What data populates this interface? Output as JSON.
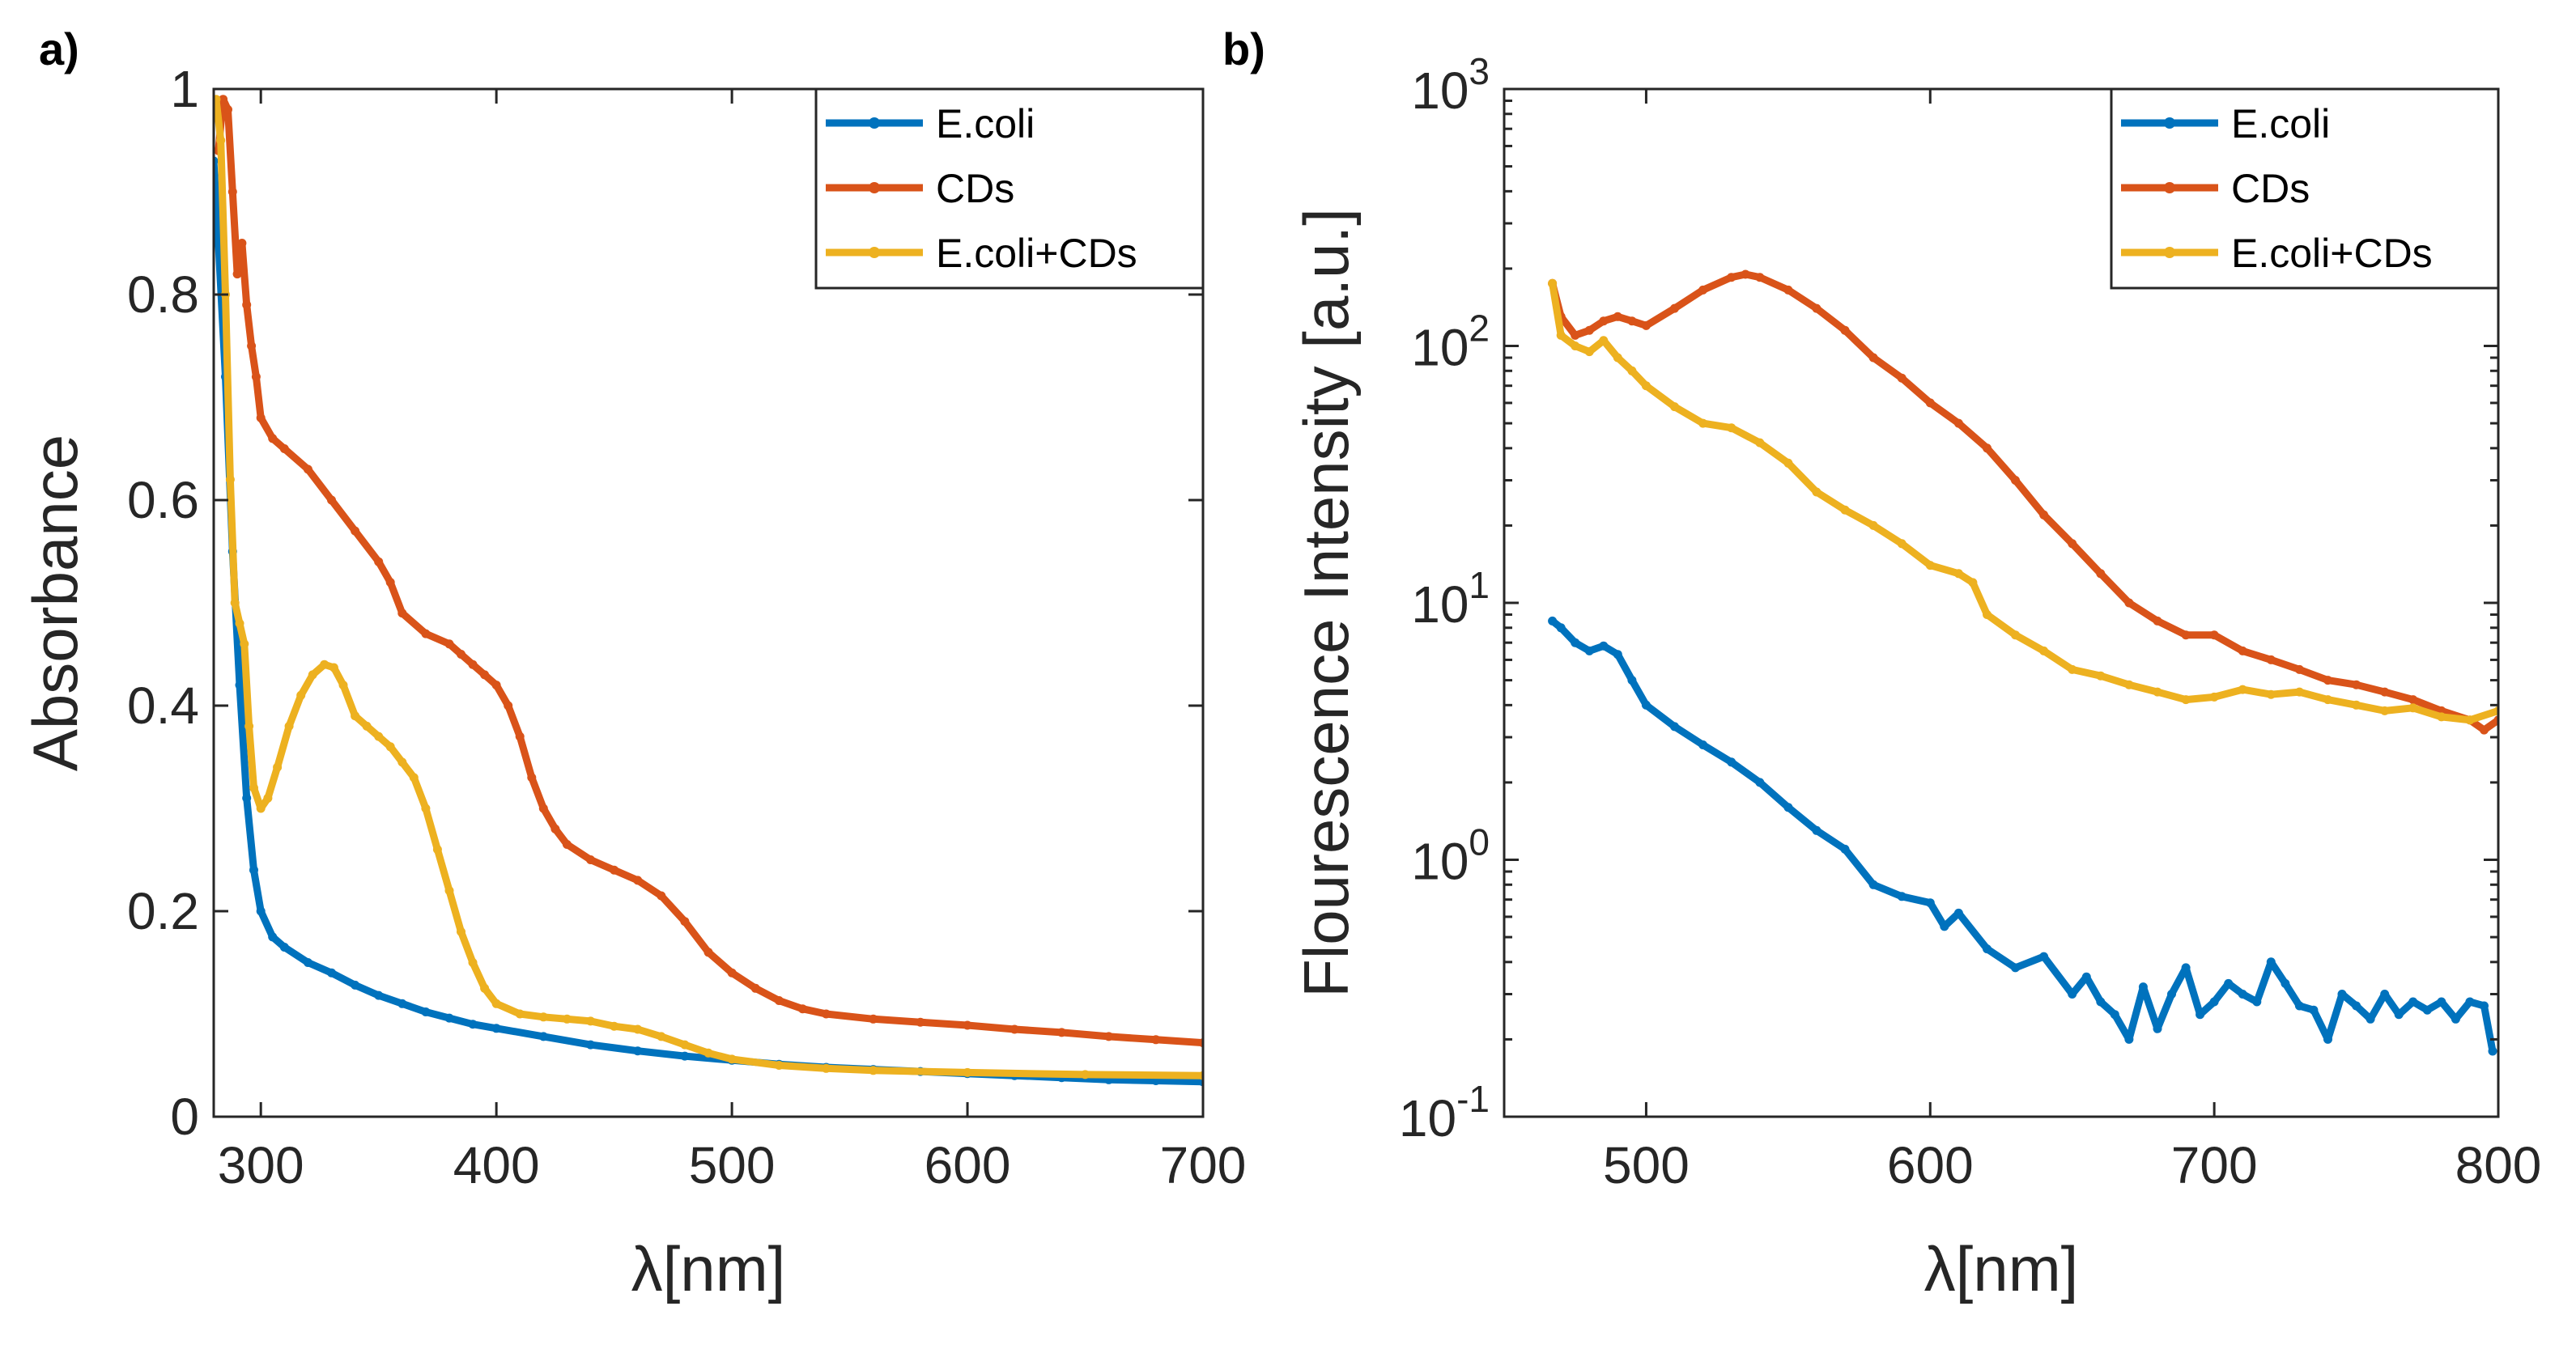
{
  "chart_data": [
    {
      "panel": "a)",
      "type": "line",
      "xlabel": "λ[nm]",
      "ylabel": "Absorbance",
      "xlim": [
        280,
        700
      ],
      "ylim": [
        0,
        1
      ],
      "xscale": "linear",
      "yscale": "linear",
      "xticks": [
        300,
        400,
        500,
        600,
        700
      ],
      "xtick_labels": [
        "300",
        "400",
        "500",
        "600",
        "700"
      ],
      "yticks": [
        0,
        0.2,
        0.4,
        0.6,
        0.8,
        1
      ],
      "ytick_labels": [
        "0",
        "0.2",
        "0.4",
        "0.6",
        "0.8",
        "1"
      ],
      "legend_position": "top-right",
      "series": [
        {
          "name": "E.coli",
          "color": "#0072BD",
          "points": [
            [
              280,
              0.93
            ],
            [
              282,
              0.85
            ],
            [
              285,
              0.72
            ],
            [
              288,
              0.55
            ],
            [
              291,
              0.42
            ],
            [
              294,
              0.31
            ],
            [
              297,
              0.24
            ],
            [
              300,
              0.2
            ],
            [
              305,
              0.175
            ],
            [
              310,
              0.165
            ],
            [
              320,
              0.15
            ],
            [
              330,
              0.14
            ],
            [
              340,
              0.128
            ],
            [
              350,
              0.118
            ],
            [
              360,
              0.11
            ],
            [
              370,
              0.102
            ],
            [
              380,
              0.096
            ],
            [
              390,
              0.09
            ],
            [
              400,
              0.086
            ],
            [
              420,
              0.078
            ],
            [
              440,
              0.07
            ],
            [
              460,
              0.064
            ],
            [
              480,
              0.059
            ],
            [
              500,
              0.055
            ],
            [
              520,
              0.051
            ],
            [
              540,
              0.048
            ],
            [
              560,
              0.046
            ],
            [
              580,
              0.044
            ],
            [
              600,
              0.042
            ],
            [
              620,
              0.04
            ],
            [
              640,
              0.038
            ],
            [
              660,
              0.036
            ],
            [
              680,
              0.035
            ],
            [
              700,
              0.034
            ]
          ]
        },
        {
          "name": "CDs",
          "color": "#D95319",
          "points": [
            [
              282,
              0.94
            ],
            [
              284,
              0.99
            ],
            [
              286,
              0.98
            ],
            [
              288,
              0.9
            ],
            [
              290,
              0.82
            ],
            [
              292,
              0.85
            ],
            [
              294,
              0.79
            ],
            [
              296,
              0.75
            ],
            [
              298,
              0.72
            ],
            [
              300,
              0.68
            ],
            [
              305,
              0.66
            ],
            [
              310,
              0.65
            ],
            [
              320,
              0.63
            ],
            [
              330,
              0.6
            ],
            [
              340,
              0.57
            ],
            [
              350,
              0.54
            ],
            [
              355,
              0.52
            ],
            [
              360,
              0.49
            ],
            [
              370,
              0.47
            ],
            [
              380,
              0.46
            ],
            [
              385,
              0.45
            ],
            [
              390,
              0.44
            ],
            [
              395,
              0.43
            ],
            [
              400,
              0.42
            ],
            [
              405,
              0.4
            ],
            [
              410,
              0.37
            ],
            [
              415,
              0.33
            ],
            [
              420,
              0.3
            ],
            [
              425,
              0.28
            ],
            [
              430,
              0.265
            ],
            [
              440,
              0.25
            ],
            [
              450,
              0.24
            ],
            [
              460,
              0.23
            ],
            [
              470,
              0.215
            ],
            [
              480,
              0.19
            ],
            [
              490,
              0.16
            ],
            [
              500,
              0.14
            ],
            [
              510,
              0.125
            ],
            [
              520,
              0.113
            ],
            [
              530,
              0.105
            ],
            [
              540,
              0.1
            ],
            [
              560,
              0.095
            ],
            [
              580,
              0.092
            ],
            [
              600,
              0.089
            ],
            [
              620,
              0.085
            ],
            [
              640,
              0.082
            ],
            [
              660,
              0.078
            ],
            [
              680,
              0.075
            ],
            [
              700,
              0.072
            ]
          ]
        },
        {
          "name": "E.coli+CDs",
          "color": "#EDB120",
          "points": [
            [
              281,
              0.99
            ],
            [
              283,
              0.95
            ],
            [
              285,
              0.8
            ],
            [
              287,
              0.62
            ],
            [
              289,
              0.5
            ],
            [
              291,
              0.48
            ],
            [
              293,
              0.46
            ],
            [
              295,
              0.38
            ],
            [
              297,
              0.32
            ],
            [
              300,
              0.3
            ],
            [
              303,
              0.31
            ],
            [
              307,
              0.34
            ],
            [
              312,
              0.38
            ],
            [
              317,
              0.41
            ],
            [
              322,
              0.43
            ],
            [
              327,
              0.44
            ],
            [
              331,
              0.437
            ],
            [
              335,
              0.42
            ],
            [
              340,
              0.39
            ],
            [
              345,
              0.38
            ],
            [
              350,
              0.37
            ],
            [
              355,
              0.36
            ],
            [
              360,
              0.345
            ],
            [
              365,
              0.33
            ],
            [
              370,
              0.3
            ],
            [
              375,
              0.26
            ],
            [
              380,
              0.22
            ],
            [
              385,
              0.18
            ],
            [
              390,
              0.15
            ],
            [
              395,
              0.125
            ],
            [
              400,
              0.11
            ],
            [
              410,
              0.1
            ],
            [
              420,
              0.097
            ],
            [
              430,
              0.095
            ],
            [
              440,
              0.093
            ],
            [
              450,
              0.088
            ],
            [
              460,
              0.085
            ],
            [
              470,
              0.078
            ],
            [
              480,
              0.07
            ],
            [
              490,
              0.062
            ],
            [
              500,
              0.056
            ],
            [
              520,
              0.05
            ],
            [
              540,
              0.047
            ],
            [
              560,
              0.045
            ],
            [
              600,
              0.043
            ],
            [
              650,
              0.041
            ],
            [
              700,
              0.04
            ]
          ]
        }
      ]
    },
    {
      "panel": "b)",
      "type": "line",
      "xlabel": "λ[nm]",
      "ylabel": "Flourescence Intensity [a.u.]",
      "xlim": [
        450,
        800
      ],
      "ylim": [
        0.1,
        1000
      ],
      "xscale": "linear",
      "yscale": "log",
      "xticks": [
        500,
        600,
        700,
        800
      ],
      "xtick_labels": [
        "500",
        "600",
        "700",
        "800"
      ],
      "yticks": [
        0.1,
        1,
        10,
        100,
        1000
      ],
      "ytick_labels": [
        {
          "base": "10",
          "exp": "-1"
        },
        {
          "base": "10",
          "exp": "0"
        },
        {
          "base": "10",
          "exp": "1"
        },
        {
          "base": "10",
          "exp": "2"
        },
        {
          "base": "10",
          "exp": "3"
        }
      ],
      "legend_position": "top-right",
      "series": [
        {
          "name": "E.coli",
          "color": "#0072BD",
          "points": [
            [
              467,
              8.5
            ],
            [
              470,
              8
            ],
            [
              475,
              7
            ],
            [
              480,
              6.5
            ],
            [
              485,
              6.8
            ],
            [
              490,
              6.3
            ],
            [
              495,
              5
            ],
            [
              500,
              4
            ],
            [
              510,
              3.3
            ],
            [
              520,
              2.8
            ],
            [
              530,
              2.4
            ],
            [
              540,
              2
            ],
            [
              550,
              1.6
            ],
            [
              560,
              1.3
            ],
            [
              570,
              1.1
            ],
            [
              580,
              0.8
            ],
            [
              590,
              0.72
            ],
            [
              600,
              0.68
            ],
            [
              605,
              0.55
            ],
            [
              610,
              0.62
            ],
            [
              620,
              0.45
            ],
            [
              630,
              0.38
            ],
            [
              640,
              0.42
            ],
            [
              650,
              0.3
            ],
            [
              655,
              0.35
            ],
            [
              660,
              0.28
            ],
            [
              665,
              0.25
            ],
            [
              670,
              0.2
            ],
            [
              675,
              0.32
            ],
            [
              680,
              0.22
            ],
            [
              685,
              0.3
            ],
            [
              690,
              0.38
            ],
            [
              695,
              0.25
            ],
            [
              700,
              0.28
            ],
            [
              705,
              0.33
            ],
            [
              710,
              0.3
            ],
            [
              715,
              0.28
            ],
            [
              720,
              0.4
            ],
            [
              725,
              0.33
            ],
            [
              730,
              0.27
            ],
            [
              735,
              0.26
            ],
            [
              740,
              0.2
            ],
            [
              745,
              0.3
            ],
            [
              750,
              0.27
            ],
            [
              755,
              0.24
            ],
            [
              760,
              0.3
            ],
            [
              765,
              0.25
            ],
            [
              770,
              0.28
            ],
            [
              775,
              0.26
            ],
            [
              780,
              0.28
            ],
            [
              785,
              0.24
            ],
            [
              790,
              0.28
            ],
            [
              795,
              0.27
            ],
            [
              798,
              0.18
            ]
          ]
        },
        {
          "name": "CDs",
          "color": "#D95319",
          "points": [
            [
              467,
              175
            ],
            [
              470,
              130
            ],
            [
              475,
              110
            ],
            [
              480,
              115
            ],
            [
              485,
              125
            ],
            [
              490,
              130
            ],
            [
              495,
              125
            ],
            [
              500,
              120
            ],
            [
              510,
              140
            ],
            [
              520,
              165
            ],
            [
              530,
              185
            ],
            [
              535,
              190
            ],
            [
              540,
              185
            ],
            [
              550,
              165
            ],
            [
              560,
              140
            ],
            [
              570,
              115
            ],
            [
              580,
              90
            ],
            [
              590,
              75
            ],
            [
              600,
              60
            ],
            [
              610,
              50
            ],
            [
              620,
              40
            ],
            [
              630,
              30
            ],
            [
              640,
              22
            ],
            [
              650,
              17
            ],
            [
              660,
              13
            ],
            [
              670,
              10
            ],
            [
              680,
              8.5
            ],
            [
              690,
              7.5
            ],
            [
              700,
              7.5
            ],
            [
              710,
              6.5
            ],
            [
              720,
              6
            ],
            [
              730,
              5.5
            ],
            [
              740,
              5
            ],
            [
              750,
              4.8
            ],
            [
              760,
              4.5
            ],
            [
              770,
              4.2
            ],
            [
              780,
              3.8
            ],
            [
              790,
              3.5
            ],
            [
              795,
              3.2
            ],
            [
              800,
              3.5
            ]
          ]
        },
        {
          "name": "E.coli+CDs",
          "color": "#EDB120",
          "points": [
            [
              467,
              175
            ],
            [
              470,
              110
            ],
            [
              475,
              100
            ],
            [
              480,
              95
            ],
            [
              485,
              105
            ],
            [
              490,
              90
            ],
            [
              495,
              80
            ],
            [
              500,
              70
            ],
            [
              510,
              58
            ],
            [
              520,
              50
            ],
            [
              530,
              48
            ],
            [
              540,
              42
            ],
            [
              550,
              35
            ],
            [
              560,
              27
            ],
            [
              570,
              23
            ],
            [
              580,
              20
            ],
            [
              590,
              17
            ],
            [
              600,
              14
            ],
            [
              610,
              13
            ],
            [
              615,
              12
            ],
            [
              620,
              9
            ],
            [
              630,
              7.5
            ],
            [
              640,
              6.5
            ],
            [
              650,
              5.5
            ],
            [
              660,
              5.2
            ],
            [
              670,
              4.8
            ],
            [
              680,
              4.5
            ],
            [
              690,
              4.2
            ],
            [
              700,
              4.3
            ],
            [
              710,
              4.6
            ],
            [
              720,
              4.4
            ],
            [
              730,
              4.5
            ],
            [
              740,
              4.2
            ],
            [
              750,
              4
            ],
            [
              760,
              3.8
            ],
            [
              770,
              3.9
            ],
            [
              780,
              3.6
            ],
            [
              790,
              3.5
            ],
            [
              800,
              3.8
            ]
          ]
        }
      ]
    }
  ]
}
